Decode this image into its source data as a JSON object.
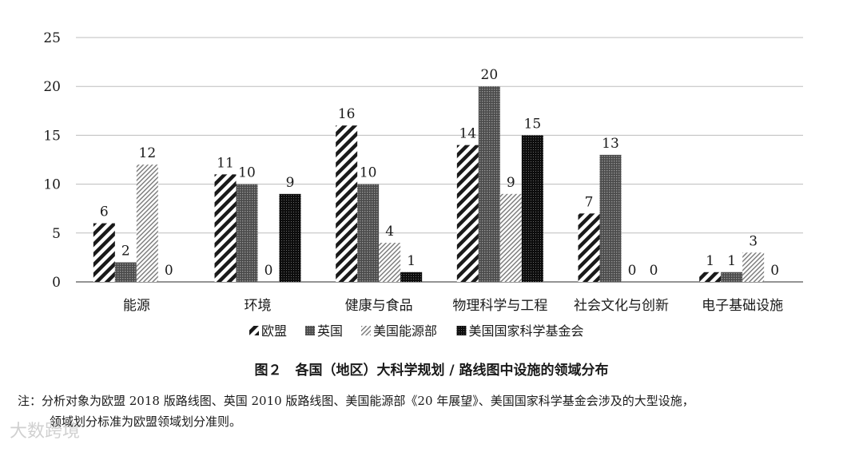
{
  "chart_data": {
    "type": "bar",
    "categories": [
      "能源",
      "环境",
      "健康与食品",
      "物理科学与工程",
      "社会文化与创新",
      "电子基础设施"
    ],
    "series": [
      {
        "name": "欧盟",
        "values": [
          6,
          11,
          16,
          14,
          7,
          1
        ],
        "pattern": "diagonal-thick"
      },
      {
        "name": "英国",
        "values": [
          2,
          10,
          10,
          20,
          13,
          1
        ],
        "pattern": "dense-dots"
      },
      {
        "name": "美国能源部",
        "values": [
          12,
          0,
          4,
          9,
          0,
          3
        ],
        "pattern": "diagonal-thin"
      },
      {
        "name": "美国国家科学基金会",
        "values": [
          0,
          9,
          1,
          15,
          0,
          0
        ],
        "pattern": "dark-dots"
      }
    ],
    "ylim": [
      0,
      25
    ],
    "yticks": [
      0,
      5,
      10,
      15,
      20,
      25
    ],
    "grid": true,
    "legend_position": "bottom"
  },
  "caption": "图２　各国（地区）大科学规划 / 路线图中设施的领域分布",
  "note_line1": "注：分析对象为欧盟 2018 版路线图、英国 2010 版路线图、美国能源部《20 年展望》、美国国家科学基金会涉及的大型设施，",
  "note_line2": "领域划分标准为欧盟领域划分准则。",
  "watermark": "大数跨境"
}
